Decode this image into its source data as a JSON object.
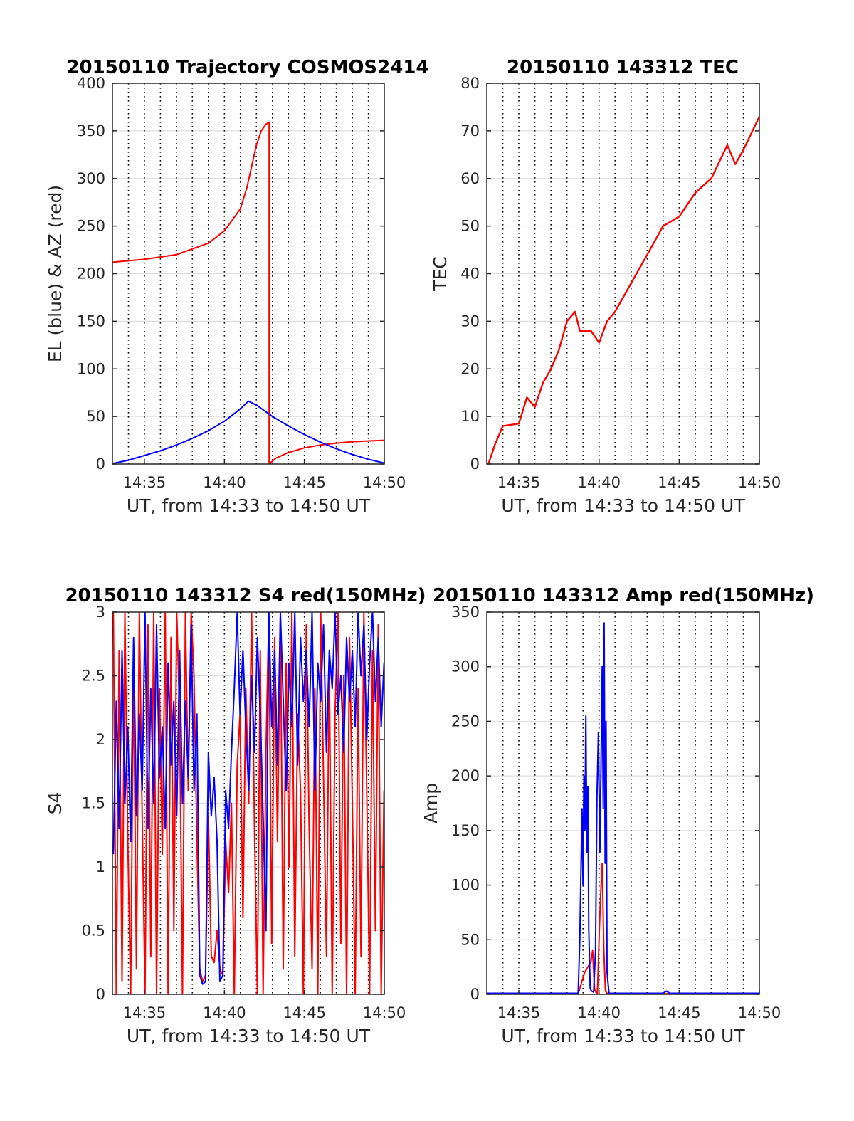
{
  "colors": {
    "red": "#ff0000",
    "blue": "#0000ff",
    "axis": "#262626",
    "grid": "#dddddd",
    "vline": "#000000"
  },
  "chart_data": [
    {
      "id": "trajectory",
      "type": "line",
      "title": "20150110 Trajectory COSMOS2414",
      "xlabel": "UT, from 14:33 to 14:50 UT",
      "ylabel": "EL (blue) & AZ (red)",
      "xlim": [
        14.55,
        14.8333
      ],
      "ylim": [
        0,
        400
      ],
      "xticks": [
        14.5833,
        14.6667,
        14.75,
        14.8333
      ],
      "xticklabels": [
        "14:35",
        "14:40",
        "14:45",
        "14:50"
      ],
      "yticks": [
        0,
        50,
        100,
        150,
        200,
        250,
        300,
        350,
        400
      ],
      "yticklabels": [
        "0",
        "50",
        "100",
        "150",
        "200",
        "250",
        "300",
        "350",
        "400"
      ],
      "vlines": [
        14.5667,
        14.5833,
        14.6,
        14.6167,
        14.6333,
        14.65,
        14.6667,
        14.6833,
        14.7,
        14.7167,
        14.7333,
        14.75,
        14.7667,
        14.7833,
        14.8,
        14.8167
      ],
      "series": [
        {
          "color": "red",
          "x": [
            14.55,
            14.5833,
            14.6167,
            14.65,
            14.6667,
            14.6833,
            14.69,
            14.7,
            14.705,
            14.71,
            14.7133,
            14.7133,
            14.72,
            14.733,
            14.75,
            14.7667,
            14.7833,
            14.8,
            14.8333
          ],
          "y": [
            212,
            215,
            220,
            232,
            245,
            268,
            290,
            335,
            350,
            357,
            359,
            0,
            6,
            12,
            17,
            20,
            22,
            23.5,
            25
          ]
        },
        {
          "color": "blue",
          "x": [
            14.55,
            14.5667,
            14.5833,
            14.6,
            14.6167,
            14.6333,
            14.65,
            14.6667,
            14.6833,
            14.6917,
            14.7,
            14.7167,
            14.7333,
            14.75,
            14.7667,
            14.7833,
            14.8,
            14.8167,
            14.8333
          ],
          "y": [
            0.5,
            4,
            9,
            14,
            20,
            27,
            35,
            45,
            58,
            66,
            62,
            50,
            40,
            31,
            23,
            16,
            10,
            5,
            1
          ]
        }
      ]
    },
    {
      "id": "tec",
      "type": "line",
      "title": "20150110 143312 TEC",
      "xlabel": "UT, from 14:33 to 14:50 UT",
      "ylabel": "TEC",
      "xlim": [
        14.55,
        14.8333
      ],
      "ylim": [
        0,
        80
      ],
      "xticks": [
        14.5833,
        14.6667,
        14.75,
        14.8333
      ],
      "xticklabels": [
        "14:35",
        "14:40",
        "14:45",
        "14:50"
      ],
      "yticks": [
        0,
        10,
        20,
        30,
        40,
        50,
        60,
        70,
        80
      ],
      "yticklabels": [
        "0",
        "10",
        "20",
        "30",
        "40",
        "50",
        "60",
        "70",
        "80"
      ],
      "vlines": [
        14.5667,
        14.5833,
        14.6,
        14.6167,
        14.6333,
        14.65,
        14.6667,
        14.6833,
        14.7,
        14.7167,
        14.7333,
        14.75,
        14.7667,
        14.7833,
        14.8,
        14.8167
      ],
      "series": [
        {
          "color": "red",
          "x": [
            14.5517,
            14.5583,
            14.5667,
            14.5833,
            14.5917,
            14.6,
            14.6083,
            14.6167,
            14.625,
            14.6333,
            14.6417,
            14.6467,
            14.6583,
            14.6667,
            14.675,
            14.6833,
            14.7,
            14.7167,
            14.7333,
            14.75,
            14.7667,
            14.7833,
            14.8,
            14.8083,
            14.8167,
            14.8333
          ],
          "y": [
            0,
            4,
            8,
            8.5,
            14,
            12,
            17,
            20,
            24,
            30,
            32,
            28,
            28,
            25.5,
            30,
            32,
            38,
            44,
            50,
            52,
            57,
            60,
            67,
            63,
            66,
            73
          ]
        }
      ]
    },
    {
      "id": "s4",
      "type": "line",
      "title": "20150110 143312 S4 red(150MHz)",
      "xlabel": "UT, from 14:33 to 14:50 UT",
      "ylabel": "S4",
      "xlim": [
        14.55,
        14.8333
      ],
      "ylim": [
        0,
        3
      ],
      "xticks": [
        14.5833,
        14.6667,
        14.75,
        14.8333
      ],
      "xticklabels": [
        "14:35",
        "14:40",
        "14:45",
        "14:50"
      ],
      "yticks": [
        0,
        0.5,
        1,
        1.5,
        2,
        2.5,
        3
      ],
      "yticklabels": [
        "0",
        "0.5",
        "1",
        "1.5",
        "2",
        "2.5",
        "3"
      ],
      "vlines": [
        14.5667,
        14.5833,
        14.6,
        14.6167,
        14.6333,
        14.65,
        14.6667,
        14.6833,
        14.7,
        14.7167,
        14.7333,
        14.75,
        14.7667,
        14.7833,
        14.8,
        14.8167
      ],
      "series": [
        {
          "color": "red",
          "x": [
            14.551,
            14.554,
            14.557,
            14.56,
            14.563,
            14.566,
            14.569,
            14.572,
            14.575,
            14.578,
            14.581,
            14.584,
            14.587,
            14.59,
            14.593,
            14.596,
            14.599,
            14.602,
            14.605,
            14.608,
            14.611,
            14.614,
            14.617,
            14.62,
            14.623,
            14.626,
            14.629,
            14.632,
            14.635,
            14.638,
            14.641,
            14.644,
            14.647,
            14.65,
            14.653,
            14.656,
            14.659,
            14.662,
            14.665,
            14.668,
            14.671,
            14.674,
            14.677,
            14.68,
            14.683,
            14.686,
            14.689,
            14.692,
            14.695,
            14.698,
            14.701,
            14.704,
            14.707,
            14.71,
            14.713,
            14.716,
            14.719,
            14.722,
            14.725,
            14.728,
            14.731,
            14.734,
            14.737,
            14.74,
            14.743,
            14.746,
            14.749,
            14.752,
            14.755,
            14.758,
            14.761,
            14.764,
            14.767,
            14.77,
            14.773,
            14.776,
            14.779,
            14.782,
            14.785,
            14.788,
            14.791,
            14.794,
            14.797,
            14.8,
            14.803,
            14.806,
            14.809,
            14.812,
            14.815,
            14.818,
            14.821,
            14.824,
            14.827,
            14.83,
            14.833
          ],
          "y": [
            3,
            0,
            2.7,
            0.1,
            3,
            1.2,
            0,
            2.6,
            0.2,
            3,
            1.4,
            0,
            2.9,
            0.3,
            3,
            0,
            2.4,
            1.1,
            3,
            0,
            2.8,
            0.5,
            3,
            2.2,
            0,
            3,
            1.6,
            3,
            2.5,
            1.2,
            0.2,
            0.1,
            0.15,
            1.4,
            0.3,
            0.25,
            0.5,
            0.2,
            0.15,
            1.2,
            0.8,
            1.5,
            0,
            1.8,
            2.2,
            0.6,
            2.4,
            1.5,
            3,
            1.3,
            0,
            2.7,
            0,
            1.9,
            3,
            0.4,
            2.8,
            1.2,
            3,
            0.2,
            2.6,
            1,
            3,
            0.3,
            2.2,
            1.6,
            0,
            2.9,
            1.3,
            0.2,
            2.4,
            0,
            3,
            1.7,
            0.3,
            2.6,
            0,
            2.2,
            3,
            0.4,
            2.5,
            0,
            2.8,
            1.5,
            0,
            2.4,
            0.3,
            3,
            1.6,
            0,
            2.7,
            0.5,
            2.9,
            0,
            1.6
          ]
        },
        {
          "color": "blue",
          "x": [
            14.551,
            14.554,
            14.557,
            14.56,
            14.563,
            14.566,
            14.569,
            14.572,
            14.575,
            14.578,
            14.581,
            14.584,
            14.587,
            14.59,
            14.593,
            14.596,
            14.599,
            14.602,
            14.605,
            14.608,
            14.611,
            14.614,
            14.617,
            14.62,
            14.623,
            14.626,
            14.629,
            14.632,
            14.635,
            14.638,
            14.641,
            14.644,
            14.647,
            14.65,
            14.653,
            14.656,
            14.659,
            14.662,
            14.665,
            14.668,
            14.671,
            14.674,
            14.677,
            14.68,
            14.683,
            14.686,
            14.689,
            14.692,
            14.695,
            14.698,
            14.701,
            14.704,
            14.707,
            14.71,
            14.713,
            14.716,
            14.719,
            14.722,
            14.725,
            14.728,
            14.731,
            14.734,
            14.737,
            14.74,
            14.743,
            14.746,
            14.749,
            14.752,
            14.755,
            14.758,
            14.761,
            14.764,
            14.767,
            14.77,
            14.773,
            14.776,
            14.779,
            14.782,
            14.785,
            14.788,
            14.791,
            14.794,
            14.797,
            14.8,
            14.803,
            14.806,
            14.809,
            14.812,
            14.815,
            14.818,
            14.821,
            14.824,
            14.827,
            14.83,
            14.833
          ],
          "y": [
            1.1,
            2.3,
            1.3,
            2.7,
            1.5,
            2.1,
            1.2,
            2.8,
            1.4,
            2.2,
            1.6,
            3,
            1.3,
            2.4,
            1.5,
            2.9,
            1.7,
            2.1,
            1.3,
            2.6,
            1.8,
            2.3,
            1.4,
            2.7,
            1.5,
            2.3,
            1.7,
            2.9,
            1.6,
            2.2,
            0.15,
            0.08,
            0.1,
            1.9,
            1.4,
            1.7,
            1.2,
            0.1,
            0.15,
            1.6,
            1.3,
            1.9,
            2.4,
            3,
            2.2,
            2.7,
            2.1,
            1.6,
            2.5,
            1.9,
            2.8,
            2.2,
            1.4,
            0.5,
            3,
            2.1,
            2.7,
            1.8,
            3,
            2.3,
            1.6,
            2.6,
            2.1,
            3,
            1.8,
            2.8,
            2.3,
            2.7,
            2.1,
            3,
            1.6,
            2.6,
            2.3,
            2.9,
            1.9,
            2.7,
            2.4,
            3,
            2.2,
            2.5,
            1.9,
            2.8,
            2.3,
            2.7,
            2.1,
            3,
            2.5,
            2.9,
            2,
            2.6,
            3,
            2.3,
            2.8,
            2.1,
            2.6
          ]
        }
      ]
    },
    {
      "id": "amp",
      "type": "line",
      "title": "20150110 143312 Amp red(150MHz)",
      "xlabel": "UT, from 14:33 to 14:50 UT",
      "ylabel": "Amp",
      "xlim": [
        14.55,
        14.8333
      ],
      "ylim": [
        0,
        350
      ],
      "xticks": [
        14.5833,
        14.6667,
        14.75,
        14.8333
      ],
      "xticklabels": [
        "14:35",
        "14:40",
        "14:45",
        "14:50"
      ],
      "yticks": [
        0,
        50,
        100,
        150,
        200,
        250,
        300,
        350
      ],
      "yticklabels": [
        "0",
        "50",
        "100",
        "150",
        "200",
        "250",
        "300",
        "350"
      ],
      "vlines": [
        14.5667,
        14.5833,
        14.6,
        14.6167,
        14.6333,
        14.65,
        14.6667,
        14.6833,
        14.7,
        14.7167,
        14.7333,
        14.75,
        14.7667,
        14.7833,
        14.8,
        14.8167
      ],
      "series": [
        {
          "color": "red",
          "x": [
            14.55,
            14.645,
            14.6483,
            14.6517,
            14.655,
            14.6583,
            14.66,
            14.662,
            14.6633,
            14.665,
            14.667,
            14.6683,
            14.67,
            14.6717,
            14.6733,
            14.675,
            14.68,
            14.8333
          ],
          "y": [
            0.5,
            0.5,
            10,
            20,
            25,
            30,
            40,
            5,
            2,
            1,
            60,
            90,
            120,
            40,
            3,
            1,
            0.5,
            0.5
          ]
        },
        {
          "color": "blue",
          "x": [
            14.55,
            14.645,
            14.6467,
            14.648,
            14.649,
            14.65,
            14.651,
            14.652,
            14.653,
            14.654,
            14.655,
            14.656,
            14.6575,
            14.659,
            14.661,
            14.663,
            14.6645,
            14.666,
            14.6675,
            14.669,
            14.67,
            14.671,
            14.672,
            14.673,
            14.674,
            14.675,
            14.677,
            14.7,
            14.7333,
            14.7367,
            14.74,
            14.8333
          ],
          "y": [
            1,
            1,
            50,
            120,
            170,
            100,
            200,
            150,
            255,
            130,
            190,
            60,
            5,
            3,
            2,
            40,
            180,
            240,
            130,
            230,
            300,
            170,
            340,
            120,
            250,
            20,
            1,
            1,
            1,
            3,
            1,
            1
          ]
        }
      ]
    }
  ]
}
